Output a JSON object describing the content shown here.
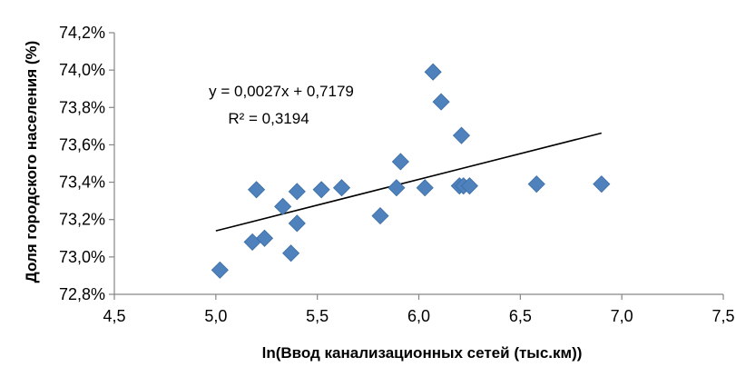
{
  "chart_data": {
    "type": "scatter",
    "title": "",
    "xlabel": "ln(Ввод  канализационных  сетей (тыс.км))",
    "ylabel": "Доля городского населения (%)",
    "xlim": [
      4.5,
      7.5
    ],
    "ylim": [
      72.8,
      74.2
    ],
    "x_ticks": [
      "4,5",
      "5,0",
      "5,5",
      "6,0",
      "6,5",
      "7,0",
      "7,5"
    ],
    "y_ticks": [
      "72,8%",
      "73,0%",
      "73,2%",
      "73,4%",
      "73,6%",
      "73,8%",
      "74,0%",
      "74,2%"
    ],
    "grid": false,
    "marker_color": "#4F81BD",
    "points": [
      {
        "x": 5.02,
        "y": 72.93
      },
      {
        "x": 5.18,
        "y": 73.08
      },
      {
        "x": 5.2,
        "y": 73.36
      },
      {
        "x": 5.24,
        "y": 73.1
      },
      {
        "x": 5.33,
        "y": 73.27
      },
      {
        "x": 5.37,
        "y": 73.02
      },
      {
        "x": 5.4,
        "y": 73.35
      },
      {
        "x": 5.4,
        "y": 73.18
      },
      {
        "x": 5.52,
        "y": 73.36
      },
      {
        "x": 5.62,
        "y": 73.37
      },
      {
        "x": 5.81,
        "y": 73.22
      },
      {
        "x": 5.89,
        "y": 73.37
      },
      {
        "x": 5.91,
        "y": 73.51
      },
      {
        "x": 6.03,
        "y": 73.37
      },
      {
        "x": 6.07,
        "y": 73.99
      },
      {
        "x": 6.11,
        "y": 73.83
      },
      {
        "x": 6.2,
        "y": 73.38
      },
      {
        "x": 6.21,
        "y": 73.65
      },
      {
        "x": 6.22,
        "y": 73.38
      },
      {
        "x": 6.25,
        "y": 73.38
      },
      {
        "x": 6.58,
        "y": 73.39
      },
      {
        "x": 6.9,
        "y": 73.39
      }
    ],
    "trendline": {
      "x_range": [
        5.0,
        6.9
      ],
      "equation": "y = 0,0027x + 0,7179",
      "r_squared": "R² = 0,3194"
    }
  }
}
